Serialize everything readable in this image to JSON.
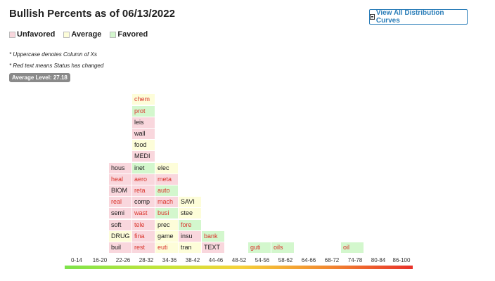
{
  "header": {
    "title": "Bullish Percents as of 06/13/2022",
    "button_label": "View All Distribution Curves"
  },
  "legend": [
    {
      "label": "Unfavored",
      "color": "#f9d7dd"
    },
    {
      "label": "Average",
      "color": "#fdfdd9"
    },
    {
      "label": "Favored",
      "color": "#d3f7cd"
    }
  ],
  "notes": [
    "* Uppercase denotes Column of Xs",
    "* Red text means Status has changed"
  ],
  "average_level": "Average Level: 27.18",
  "ranges": [
    "0-14",
    "16-20",
    "22-26",
    "28-32",
    "34-36",
    "38-42",
    "44-46",
    "48-52",
    "54-56",
    "58-62",
    "64-66",
    "68-72",
    "74-78",
    "80-84",
    "86-100"
  ],
  "columns": [
    {
      "range": "16-20",
      "cells": [
        {
          "label": "buil",
          "status": "unfavored",
          "changed": false
        },
        {
          "label": "DRUG",
          "status": "average",
          "changed": false
        },
        {
          "label": "soft",
          "status": "unfavored",
          "changed": false
        },
        {
          "label": "semi",
          "status": "unfavored",
          "changed": false
        },
        {
          "label": "real",
          "status": "unfavored",
          "changed": true
        },
        {
          "label": "BIOM",
          "status": "unfavored",
          "changed": false
        },
        {
          "label": "heal",
          "status": "unfavored",
          "changed": true
        },
        {
          "label": "hous",
          "status": "unfavored",
          "changed": false
        }
      ]
    },
    {
      "range": "22-26",
      "cells": [
        {
          "label": "rest",
          "status": "unfavored",
          "changed": true
        },
        {
          "label": "fina",
          "status": "unfavored",
          "changed": true
        },
        {
          "label": "tele",
          "status": "unfavored",
          "changed": true
        },
        {
          "label": "wast",
          "status": "unfavored",
          "changed": true
        },
        {
          "label": "comp",
          "status": "unfavored",
          "changed": false
        },
        {
          "label": "reta",
          "status": "unfavored",
          "changed": true
        },
        {
          "label": "aero",
          "status": "unfavored",
          "changed": true
        },
        {
          "label": "inet",
          "status": "favored",
          "changed": false
        },
        {
          "label": "MEDI",
          "status": "unfavored",
          "changed": false
        },
        {
          "label": "food",
          "status": "average",
          "changed": false
        },
        {
          "label": "wall",
          "status": "unfavored",
          "changed": false
        },
        {
          "label": "leis",
          "status": "unfavored",
          "changed": false
        },
        {
          "label": "prot",
          "status": "favored",
          "changed": true
        },
        {
          "label": "chem",
          "status": "average",
          "changed": true
        }
      ]
    },
    {
      "range": "28-32",
      "cells": [
        {
          "label": "euti",
          "status": "average",
          "changed": true
        },
        {
          "label": "game",
          "status": "average",
          "changed": false
        },
        {
          "label": "prec",
          "status": "average",
          "changed": false
        },
        {
          "label": "busi",
          "status": "favored",
          "changed": true
        },
        {
          "label": "mach",
          "status": "unfavored",
          "changed": true
        },
        {
          "label": "auto",
          "status": "favored",
          "changed": true
        },
        {
          "label": "meta",
          "status": "unfavored",
          "changed": true
        },
        {
          "label": "elec",
          "status": "average",
          "changed": false
        }
      ]
    },
    {
      "range": "34-36",
      "cells": [
        {
          "label": "tran",
          "status": "average",
          "changed": false
        },
        {
          "label": "insu",
          "status": "unfavored",
          "changed": false
        },
        {
          "label": "fore",
          "status": "favored",
          "changed": true
        },
        {
          "label": "stee",
          "status": "average",
          "changed": false
        },
        {
          "label": "SAVI",
          "status": "average",
          "changed": false
        }
      ]
    },
    {
      "range": "38-42",
      "cells": [
        {
          "label": "TEXT",
          "status": "unfavored",
          "changed": false
        },
        {
          "label": "bank",
          "status": "favored",
          "changed": true
        }
      ]
    },
    {
      "range": "48-52",
      "cells": [
        {
          "label": "guti",
          "status": "favored",
          "changed": true
        }
      ]
    },
    {
      "range": "54-56",
      "cells": [
        {
          "label": "oils",
          "status": "favored",
          "changed": true
        }
      ]
    },
    {
      "range": "68-72",
      "cells": [
        {
          "label": "oil",
          "status": "favored",
          "changed": true
        }
      ]
    }
  ]
}
